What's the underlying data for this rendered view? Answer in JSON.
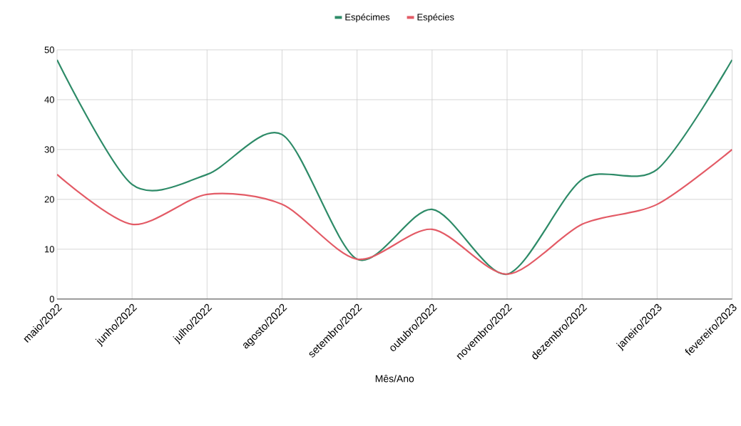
{
  "chart_data": {
    "type": "line",
    "xlabel": "Mês/Ano",
    "categories": [
      "maio/2022",
      "junho/2022",
      "julho/2022",
      "agosto/2022",
      "setembro/2022",
      "outubro/2022",
      "novembro/2022",
      "dezembro/2022",
      "janeiro/2023",
      "fevereiro/2023"
    ],
    "series": [
      {
        "name": "Espécimes",
        "color": "#2e8b68",
        "values": [
          48,
          23,
          25,
          33,
          8,
          18,
          5,
          24,
          26,
          48
        ]
      },
      {
        "name": "Espécies",
        "color": "#e35b66",
        "values": [
          25,
          15,
          21,
          19,
          8,
          14,
          5,
          15,
          19,
          30
        ]
      }
    ],
    "ylim": [
      0,
      50
    ],
    "yticks": [
      0,
      10,
      20,
      30,
      40,
      50
    ],
    "grid": true,
    "legend": "top"
  }
}
